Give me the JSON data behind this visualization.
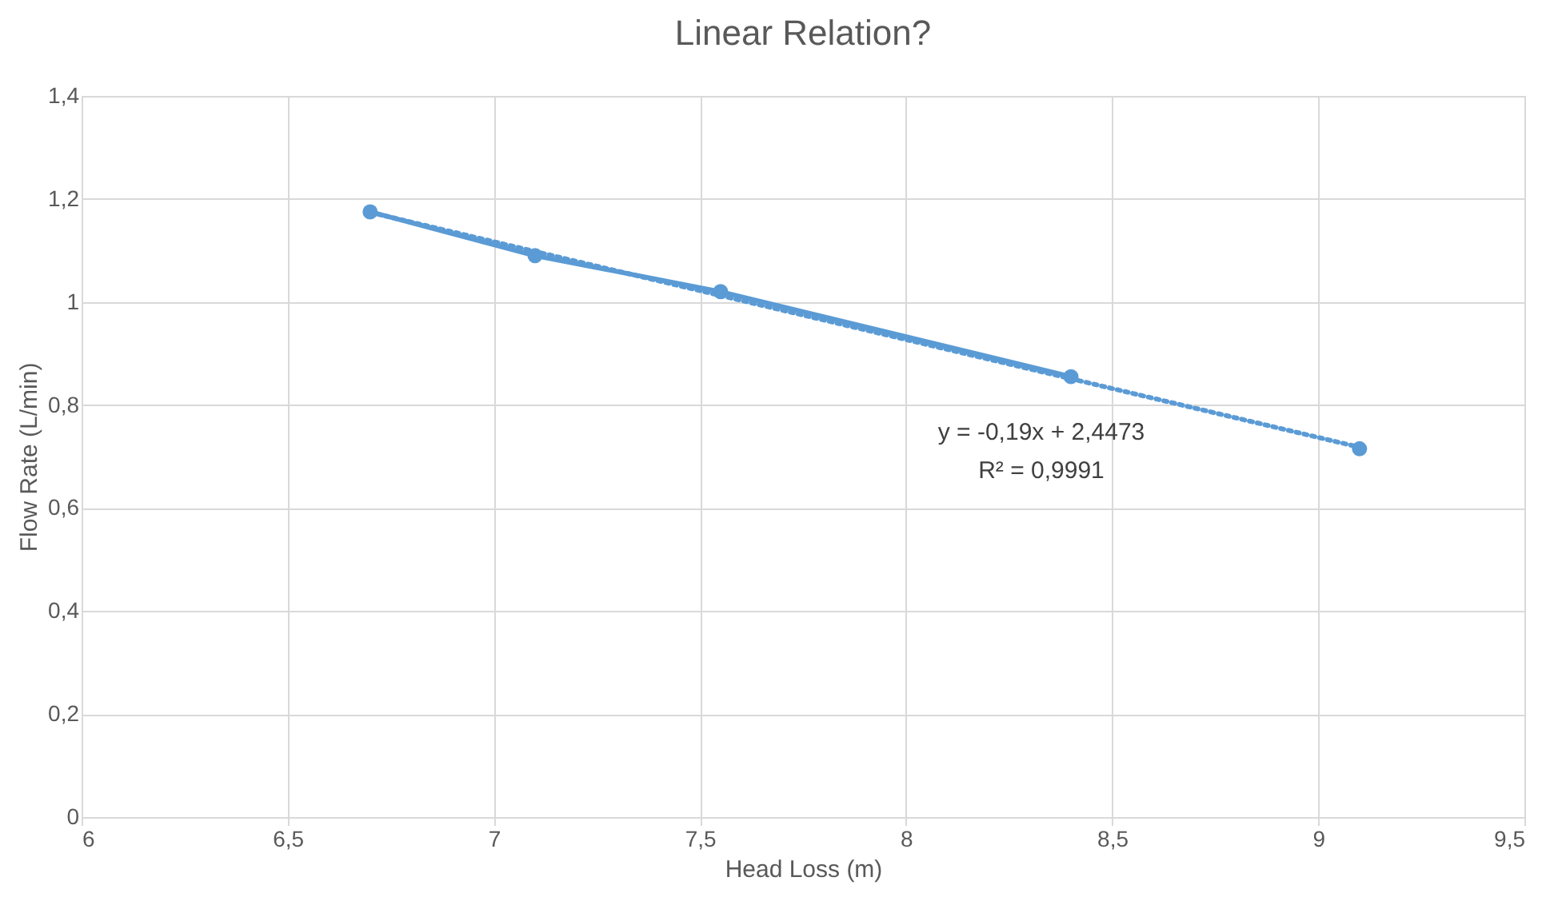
{
  "chart_data": {
    "type": "line",
    "title": "Linear Relation?",
    "xlabel": "Head Loss (m)",
    "ylabel": "Flow Rate (L/min)",
    "series": [
      {
        "color": "#5b9bd5",
        "x": [
          6.7,
          7.1,
          7.55,
          8.4
        ],
        "values": [
          1.175,
          1.09,
          1.02,
          0.855
        ],
        "marker": "circle",
        "line_style": "solid"
      },
      {
        "type": "scatter",
        "color": "#5b9bd5",
        "x": [
          9.1
        ],
        "values": [
          0.715
        ],
        "marker": "circle"
      },
      {
        "type": "line",
        "color": "#5b9bd5",
        "x": [
          6.7,
          9.1
        ],
        "values": [
          1.174,
          0.718
        ],
        "line_style": "dotted"
      }
    ],
    "annotations": [
      "y = -0,19x + 2,4473",
      "R² = 0,9991"
    ],
    "xlim": [
      6,
      9.5
    ],
    "ylim": [
      0,
      1.4
    ],
    "xticks": [
      6,
      {
        "value": 6.5,
        "label": "6,5"
      },
      7,
      {
        "value": 7.5,
        "label": "7,5"
      },
      8,
      {
        "value": 8.5,
        "label": "8,5"
      },
      9,
      {
        "value": 9.5,
        "label": "9,5"
      }
    ],
    "yticks": [
      0,
      {
        "value": 0.2,
        "label": "0,2"
      },
      {
        "value": 0.4,
        "label": "0,4"
      },
      {
        "value": 0.6,
        "label": "0,6"
      },
      {
        "value": 0.8,
        "label": "0,8"
      },
      1,
      {
        "value": 1.2,
        "label": "1,2"
      },
      {
        "value": 1.4,
        "label": "1,4"
      }
    ],
    "grid": true
  }
}
